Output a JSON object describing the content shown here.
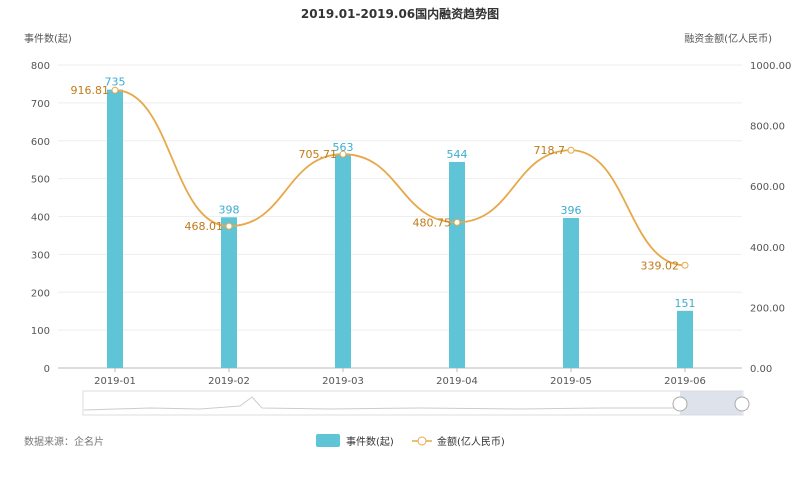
{
  "chart_data": {
    "type": "bar+line",
    "title": "2019.01-2019.06国内融资趋势图",
    "categories": [
      "2019-01",
      "2019-02",
      "2019-03",
      "2019-04",
      "2019-05",
      "2019-06"
    ],
    "series": [
      {
        "name": "事件数(起)",
        "type": "bar",
        "axis": "left",
        "values": [
          735,
          398,
          563,
          544,
          396,
          151
        ],
        "labels": [
          "735",
          "398",
          "563",
          "544",
          "396",
          "151"
        ]
      },
      {
        "name": "金额(亿人民币)",
        "type": "line",
        "axis": "right",
        "values": [
          916.81,
          468.01,
          705.71,
          480.75,
          718.7,
          339.02
        ],
        "labels": [
          "916.81",
          "468.01",
          "705.71",
          "480.75",
          "718.7",
          "339.02"
        ]
      }
    ],
    "ylabel_left": "事件数(起)",
    "ylabel_right": "融资金额(亿人民币)",
    "ylim_left": [
      0,
      800
    ],
    "ylim_right": [
      0,
      1000
    ],
    "yticks_left": [
      "0",
      "100",
      "200",
      "300",
      "400",
      "500",
      "600",
      "700",
      "800"
    ],
    "yticks_right": [
      "0.00",
      "200.00",
      "400.00",
      "600.00",
      "800.00",
      "1000.00"
    ],
    "grid": true,
    "legend": "bottom",
    "colors": {
      "bar": "#5ec4d6",
      "line": "#e8a84a",
      "label_bar": "#3aaed0",
      "label_line": "#c07a1a"
    }
  },
  "source": "数据来源：企名片"
}
